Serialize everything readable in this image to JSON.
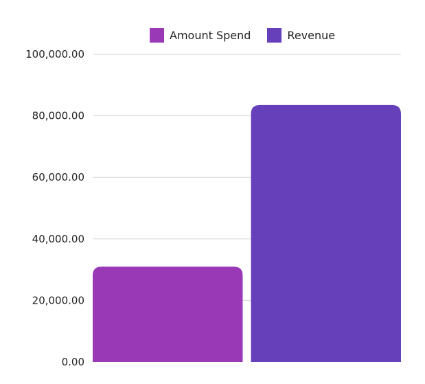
{
  "chart_data": {
    "type": "bar",
    "categories": [
      ""
    ],
    "series": [
      {
        "name": "Amount Spend",
        "values": [
          31000
        ],
        "color": "#9939b6"
      },
      {
        "name": "Revenue",
        "values": [
          83500
        ],
        "color": "#6640bb"
      }
    ],
    "ylim": [
      0,
      100000
    ],
    "yticks": [
      "0.00",
      "20,000.00",
      "40,000.00",
      "60,000.00",
      "80,000.00",
      "100,000.00"
    ],
    "ytick_values": [
      0,
      20000,
      40000,
      60000,
      80000,
      100000
    ],
    "grid": true,
    "legend_position": "top"
  }
}
